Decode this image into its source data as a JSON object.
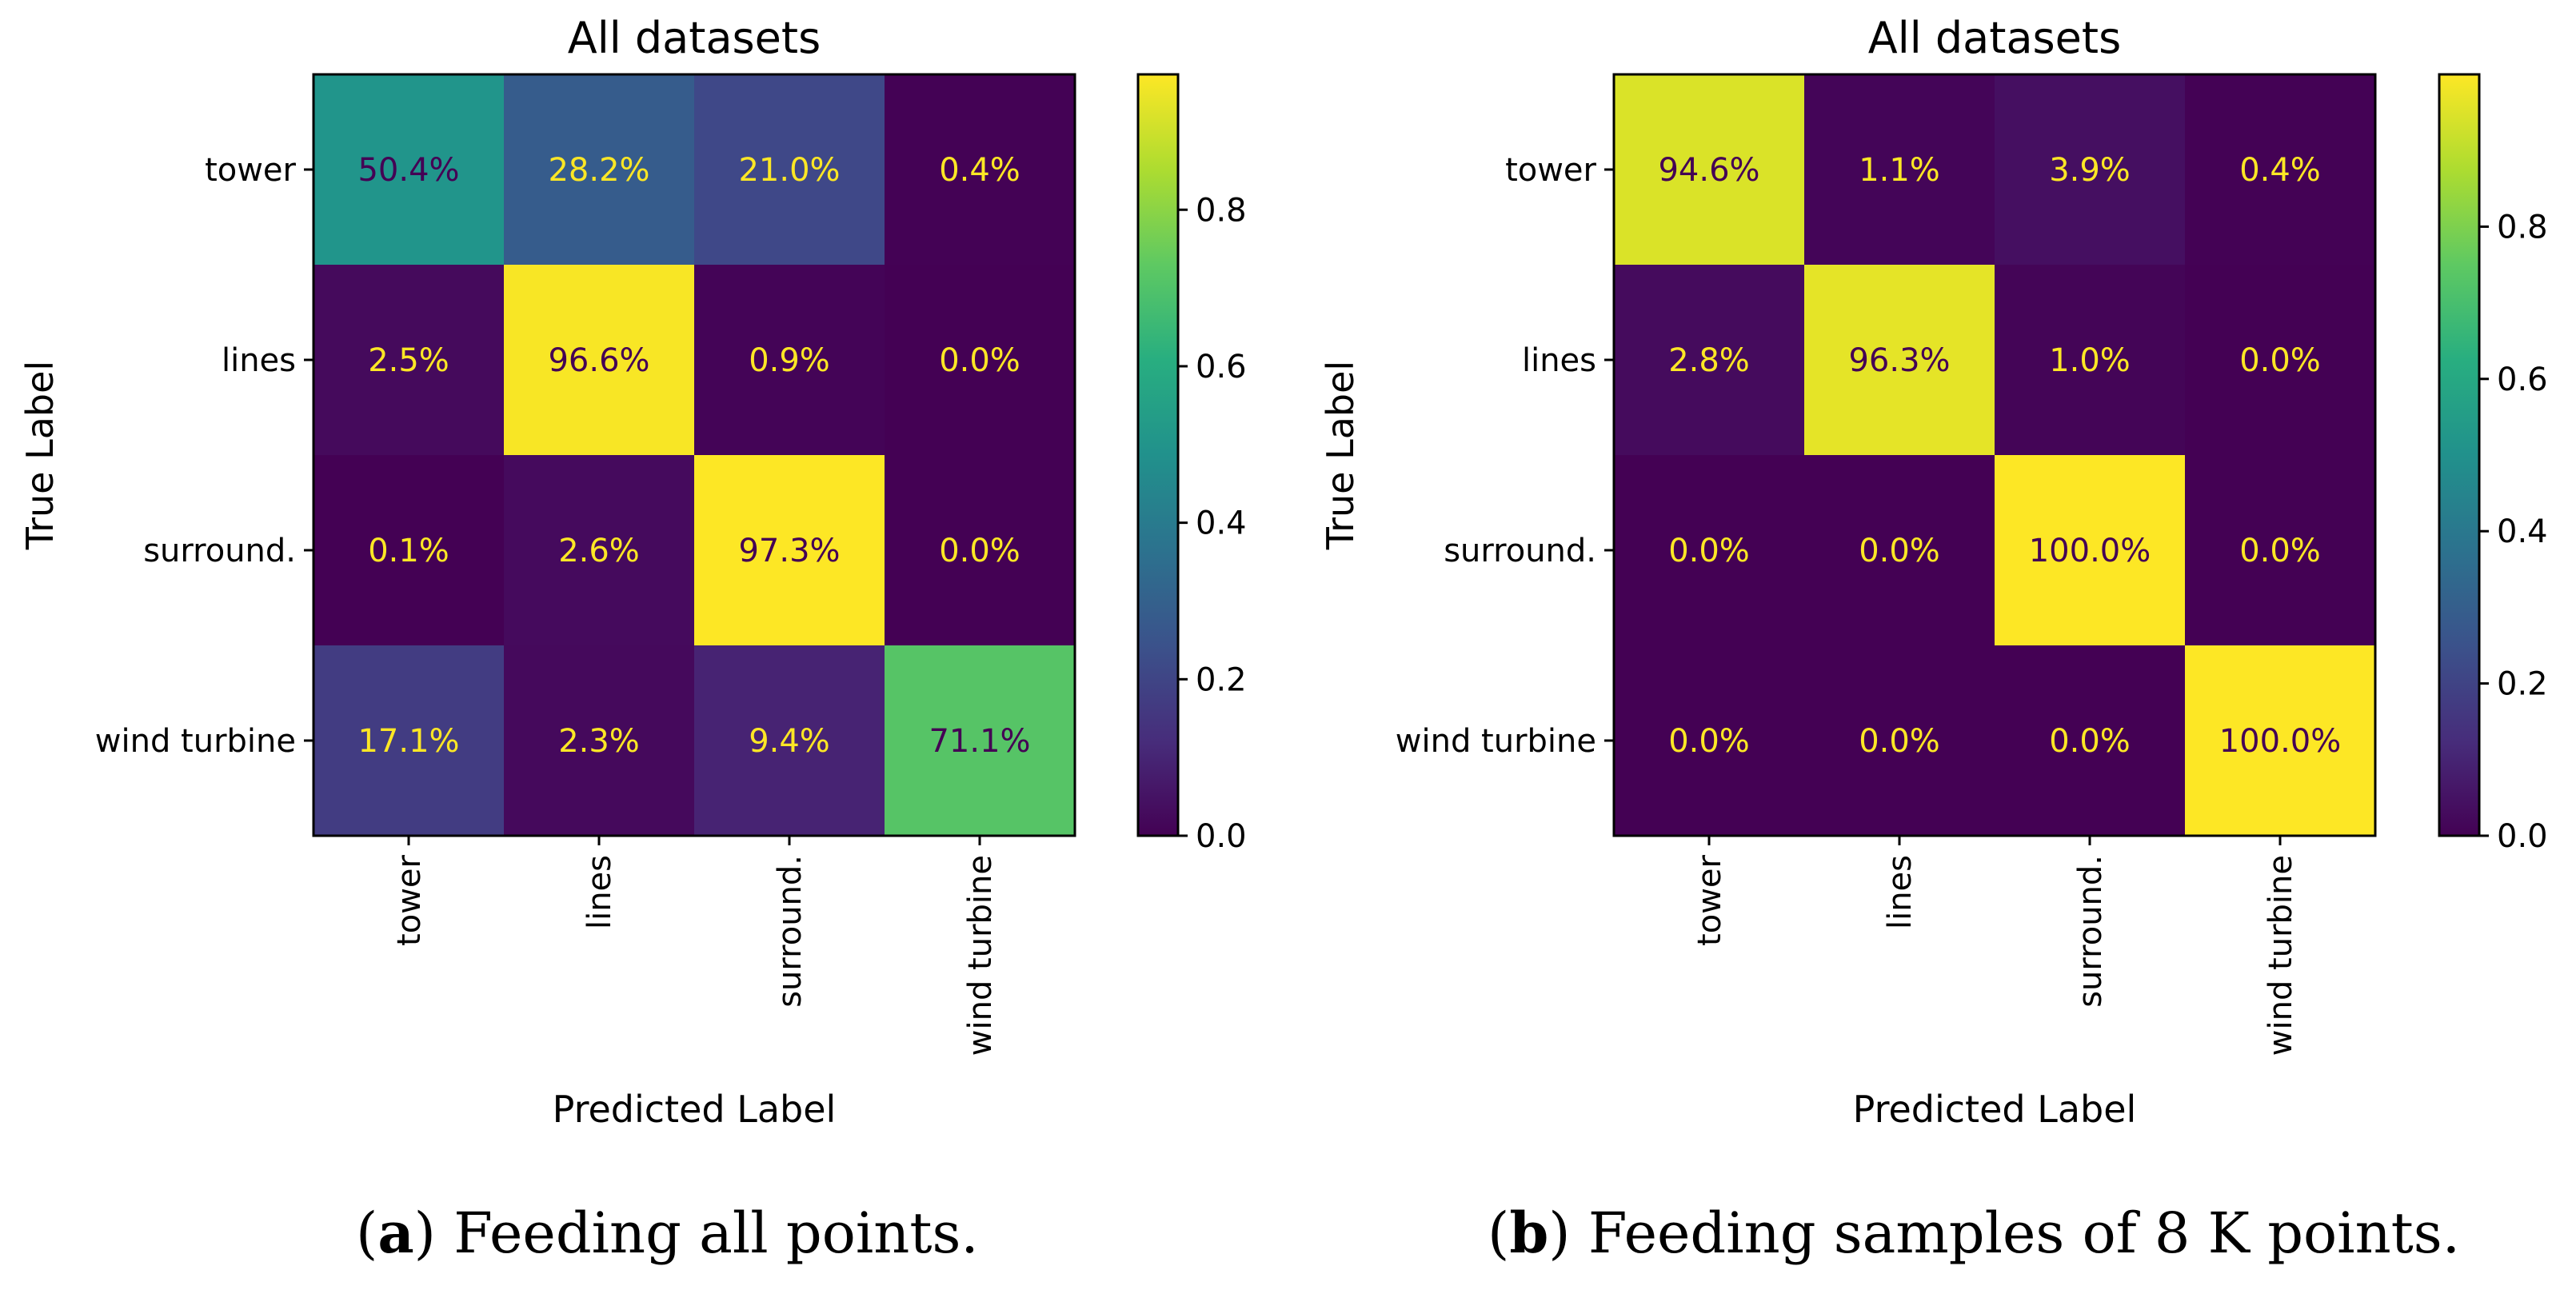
{
  "chart_data": [
    {
      "type": "heatmap",
      "title": "All datasets",
      "xlabel": "Predicted Label",
      "ylabel": "True Label",
      "row_labels": [
        "tower",
        "lines",
        "surround.",
        "wind turbine"
      ],
      "col_labels": [
        "tower",
        "lines",
        "surround.",
        "wind turbine"
      ],
      "values": [
        [
          0.504,
          0.282,
          0.21,
          0.004
        ],
        [
          0.025,
          0.966,
          0.009,
          0.0
        ],
        [
          0.001,
          0.026,
          0.973,
          0.0
        ],
        [
          0.171,
          0.023,
          0.094,
          0.711
        ]
      ],
      "cell_labels": [
        [
          "50.4%",
          "28.2%",
          "21.0%",
          "0.4%"
        ],
        [
          "2.5%",
          "96.6%",
          "0.9%",
          "0.0%"
        ],
        [
          "0.1%",
          "2.6%",
          "97.3%",
          "0.0%"
        ],
        [
          "17.1%",
          "2.3%",
          "9.4%",
          "71.1%"
        ]
      ],
      "colormap": "viridis",
      "color_range": [
        0,
        0.973
      ],
      "colorbar_ticks": [
        "0.0",
        "0.2",
        "0.4",
        "0.6",
        "0.8"
      ],
      "colorbar_tick_values": [
        0,
        0.2,
        0.4,
        0.6,
        0.8
      ],
      "caption_letter": "a",
      "caption_text": " Feeding all points."
    },
    {
      "type": "heatmap",
      "title": "All datasets",
      "xlabel": "Predicted Label",
      "ylabel": "True Label",
      "row_labels": [
        "tower",
        "lines",
        "surround.",
        "wind turbine"
      ],
      "col_labels": [
        "tower",
        "lines",
        "surround.",
        "wind turbine"
      ],
      "values": [
        [
          0.946,
          0.011,
          0.039,
          0.004
        ],
        [
          0.028,
          0.963,
          0.01,
          0.0
        ],
        [
          0.0,
          0.0,
          1.0,
          0.0
        ],
        [
          0.0,
          0.0,
          0.0,
          1.0
        ]
      ],
      "cell_labels": [
        [
          "94.6%",
          "1.1%",
          "3.9%",
          "0.4%"
        ],
        [
          "2.8%",
          "96.3%",
          "1.0%",
          "0.0%"
        ],
        [
          "0.0%",
          "0.0%",
          "100.0%",
          "0.0%"
        ],
        [
          "0.0%",
          "0.0%",
          "0.0%",
          "100.0%"
        ]
      ],
      "colormap": "viridis",
      "color_range": [
        0,
        1.0
      ],
      "colorbar_ticks": [
        "0.0",
        "0.2",
        "0.4",
        "0.6",
        "0.8"
      ],
      "colorbar_tick_values": [
        0,
        0.2,
        0.4,
        0.6,
        0.8
      ],
      "caption_letter": "b",
      "caption_text": " Feeding samples of 8 K points."
    }
  ],
  "colors": {
    "text_dark": "#440154",
    "text_light": "#fde725",
    "axes": "#000000"
  }
}
